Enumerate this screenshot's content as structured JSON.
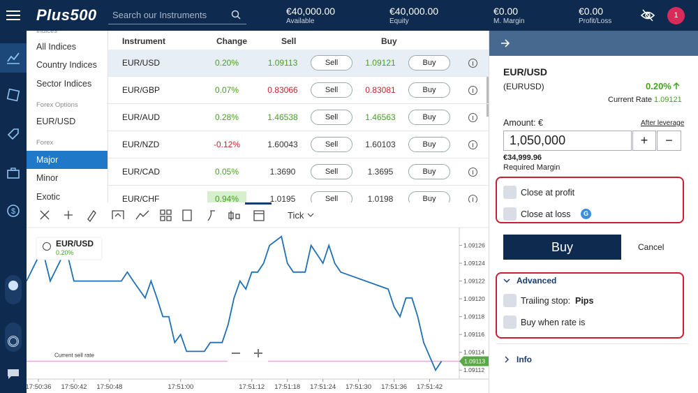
{
  "header": {
    "logo": "Plus500",
    "search_placeholder": "Search our Instruments",
    "stats": [
      {
        "value": "€40,000.00",
        "label": "Available"
      },
      {
        "value": "€40,000.00",
        "label": "Equity"
      },
      {
        "value": "€0.00",
        "label": "M. Margin"
      },
      {
        "value": "€0.00",
        "label": "Profit/Loss"
      }
    ],
    "notifications": "1"
  },
  "menu": {
    "items": [
      {
        "text": "Indices",
        "kind": "heading"
      },
      {
        "text": "All Indices",
        "kind": "item"
      },
      {
        "text": "Country Indices",
        "kind": "item"
      },
      {
        "text": "Sector Indices",
        "kind": "item"
      },
      {
        "text": "Forex Options",
        "kind": "heading"
      },
      {
        "text": "EUR/USD",
        "kind": "item"
      },
      {
        "text": "Forex",
        "kind": "heading"
      },
      {
        "text": "Major",
        "kind": "selected"
      },
      {
        "text": "Minor",
        "kind": "item"
      },
      {
        "text": "Exotic",
        "kind": "item"
      }
    ]
  },
  "table": {
    "headers": [
      "Instrument",
      "Change",
      "Sell",
      "Buy"
    ],
    "sell_button": "Sell",
    "buy_button": "Buy",
    "rows": [
      {
        "instrument": "EUR/USD",
        "change": "0.20%",
        "sell": "1.09113",
        "buy": "1.09121",
        "price_color": "#45a11f",
        "selected": true
      },
      {
        "instrument": "EUR/GBP",
        "change": "0.07%",
        "sell": "0.83066",
        "buy": "0.83081",
        "price_color": "#c0282d"
      },
      {
        "instrument": "EUR/AUD",
        "change": "0.28%",
        "sell": "1.46538",
        "buy": "1.46563",
        "price_color": "#45a11f"
      },
      {
        "instrument": "EUR/NZD",
        "change": "-0.12%",
        "sell": "1.60043",
        "buy": "1.60103",
        "price_color": "#333333"
      },
      {
        "instrument": "EUR/CAD",
        "change": "0.05%",
        "sell": "1.3690",
        "buy": "1.3695",
        "price_color": "#333333"
      },
      {
        "instrument": "EUR/CHF",
        "change": "0.94%",
        "sell": "1.0195",
        "buy": "1.0198",
        "price_color": "#333333",
        "highlight": true
      }
    ]
  },
  "chart": {
    "type": "line",
    "interval": "Tick",
    "instrument": "EUR/USD",
    "change": "0.20%",
    "color": "#1f6fb5",
    "x": [
      "17:50:34",
      "17:50:36",
      "17:50:37",
      "17:50:38",
      "17:50:40",
      "17:50:41",
      "17:50:42",
      "17:50:50",
      "17:50:51",
      "17:50:52",
      "17:50:54",
      "17:50:55",
      "17:50:56",
      "17:50:57",
      "17:50:58",
      "17:50:59",
      "17:51:00",
      "17:51:01",
      "17:51:04",
      "17:51:05",
      "17:51:07",
      "17:51:08",
      "17:51:09",
      "17:51:10",
      "17:51:11",
      "17:51:12",
      "17:51:13",
      "17:51:14",
      "17:51:15",
      "17:51:17",
      "17:51:18",
      "17:51:19",
      "17:51:21",
      "17:51:22",
      "17:51:24",
      "17:51:25",
      "17:51:26",
      "17:51:27",
      "17:51:35",
      "17:51:36",
      "17:51:37",
      "17:51:38",
      "17:51:39",
      "17:51:40",
      "17:51:41",
      "17:51:43",
      "17:51:44"
    ],
    "values": [
      1.09122,
      1.091247,
      1.091247,
      1.09122,
      1.091247,
      1.091247,
      1.09122,
      1.09122,
      1.09123,
      1.09122,
      1.091201,
      1.09122,
      1.091201,
      1.09118,
      1.09118,
      1.091151,
      1.09116,
      1.091141,
      1.091141,
      1.091151,
      1.091151,
      1.091171,
      1.091201,
      1.09122,
      1.091211,
      1.09123,
      1.09123,
      1.09124,
      1.09126,
      1.09127,
      1.09124,
      1.09123,
      1.09123,
      1.09126,
      1.09124,
      1.09126,
      1.09124,
      1.09123,
      1.091211,
      1.091191,
      1.09118,
      1.091201,
      1.091201,
      1.09118,
      1.091151,
      1.09112,
      1.09113
    ],
    "xlim": [
      "17:50:34",
      "17:51:47"
    ],
    "ylim": [
      1.09111,
      1.09128
    ],
    "xticks": [
      "17:50:36",
      "17:50:42",
      "17:50:48",
      "17:51:00",
      "17:51:12",
      "17:51:18",
      "17:51:24",
      "17:51:30",
      "17:51:36",
      "17:51:42"
    ],
    "yticks": [
      1.09112,
      1.09114,
      1.09116,
      1.09118,
      {
        "value": 1.0912,
        "label": "1.09120"
      },
      1.09122,
      1.09124,
      1.09126
    ],
    "current_rate": {
      "label": "Current sell rate",
      "value": 1.09113,
      "color": "#e9a6d8",
      "tag_color": "#5aa845"
    }
  },
  "panel": {
    "instrument": "EUR/USD",
    "symbol": "(EURUSD)",
    "change": "0.20%",
    "current_rate_label": "Current Rate",
    "current_rate": "1.09121",
    "amount_label": "Amount: €",
    "leverage_link": "After leverage",
    "amount": "1,050,000",
    "plus": "+",
    "minus": "−",
    "margin": "€34,999.96",
    "margin_label": "Required Margin",
    "close_profit": "Close at profit",
    "close_loss": "Close at loss",
    "badge": "G",
    "buy": "Buy",
    "cancel": "Cancel",
    "advanced": "Advanced",
    "trailing_stop": "Trailing stop:",
    "trailing_unit": "Pips",
    "buy_when": "Buy when rate is",
    "info": "Info"
  }
}
